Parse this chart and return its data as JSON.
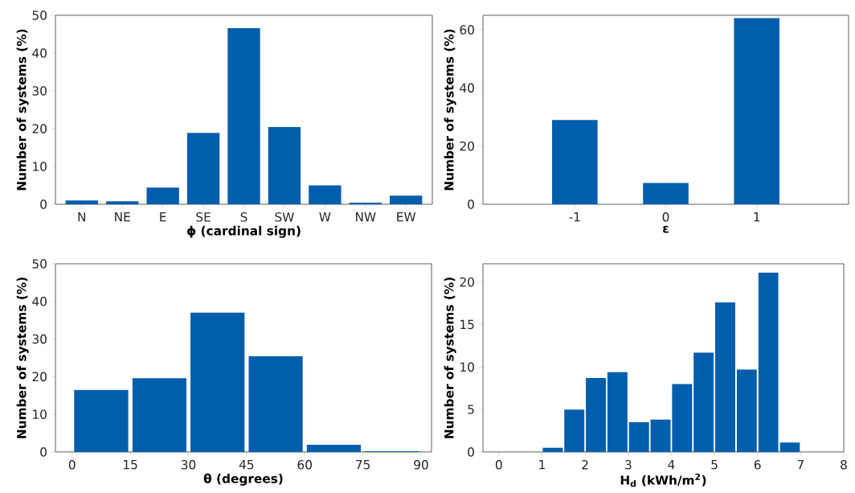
{
  "chart_data": [
    {
      "type": "bar",
      "xlabel": "ϕ  (cardinal sign)",
      "ylabel": "Number of systems  (%)",
      "categories": [
        "N",
        "NE",
        "E",
        "SE",
        "S",
        "SW",
        "W",
        "NW",
        "EW"
      ],
      "values": [
        1.0,
        0.8,
        4.4,
        18.9,
        46.6,
        20.4,
        5.0,
        0.4,
        2.3
      ],
      "color": "#005eac",
      "ylim": [
        0,
        50
      ],
      "yticks": [
        0,
        10,
        20,
        30,
        40,
        50
      ]
    },
    {
      "type": "bar",
      "xlabel": "ε",
      "ylabel": "Number of systems  (%)",
      "categories": [
        "-1",
        "0",
        "1"
      ],
      "values": [
        29.0,
        7.3,
        64.0
      ],
      "color": "#005eac",
      "ylim": [
        0,
        65
      ],
      "yticks": [
        0,
        20,
        40,
        60
      ]
    },
    {
      "type": "histogram",
      "xlabel": "θ  (degrees)",
      "ylabel": "Number of systems  (%)",
      "bins": [
        0,
        15,
        30,
        45,
        60,
        75,
        90
      ],
      "values": [
        16.5,
        19.6,
        37.0,
        25.4,
        1.9,
        0.2
      ],
      "color": "#005eac",
      "xlim": [
        -4.3,
        92.7
      ],
      "xticks": [
        0,
        15,
        30,
        45,
        60,
        75,
        90
      ],
      "ylim": [
        0,
        50
      ],
      "yticks": [
        0,
        10,
        20,
        30,
        40,
        50
      ]
    },
    {
      "type": "histogram",
      "xlabel": "H$_{d}$  (kWh/m$^{2}$)",
      "ylabel": "Number of systems  (%)",
      "bins": [
        1,
        1.5,
        2,
        2.5,
        3,
        3.5,
        4,
        4.5,
        5,
        5.5,
        6,
        6.5,
        7
      ],
      "values": [
        0.5,
        5.0,
        8.7,
        9.4,
        3.5,
        3.8,
        8.0,
        11.7,
        17.6,
        9.7,
        21.1,
        1.1
      ],
      "color": "#005eac",
      "xlim": [
        -0.37,
        8.0
      ],
      "xticks": [
        0,
        1,
        2,
        3,
        4,
        5,
        6,
        7,
        8
      ],
      "ylim": [
        0,
        22.15
      ],
      "yticks": [
        0,
        5,
        10,
        15,
        20
      ]
    }
  ]
}
